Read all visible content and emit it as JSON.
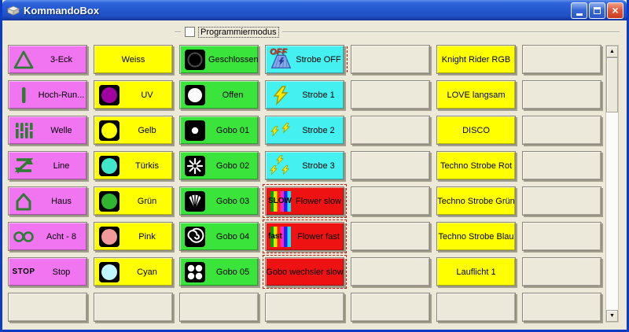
{
  "window": {
    "title": "KommandoBox"
  },
  "toolbar": {
    "checkbox_label": "Programmiermodus",
    "checkbox_checked": false
  },
  "colors": {
    "pink": "#F175F1",
    "yellow": "#FFFF00",
    "green": "#3BE43B",
    "cyan": "#45F0F0",
    "red": "#EE1212",
    "plain": "#ECE9DA",
    "icon_green": "#2E7B32",
    "titlebar_blue": "#2458CE",
    "border_blue": "#0C3BC6"
  },
  "grid": {
    "columns": [
      {
        "id": "figures",
        "bg": "pink",
        "buttons": [
          {
            "label": "3-Eck",
            "icon": "triangle-icon"
          },
          {
            "label": "Hoch-Run...",
            "icon": "vertical-bar-icon"
          },
          {
            "label": "Welle",
            "icon": "wave-bars-icon"
          },
          {
            "label": "Line",
            "icon": "zigzag-icon"
          },
          {
            "label": "Haus",
            "icon": "house-icon"
          },
          {
            "label": "Acht - 8",
            "icon": "infinity-icon"
          },
          {
            "label": "Stop",
            "icon": "stop-text-icon",
            "icon_text": "STOP"
          },
          {
            "bg": "plain"
          }
        ]
      },
      {
        "id": "colors",
        "bg": "yellow",
        "buttons": [
          {
            "label": "Weiss"
          },
          {
            "label": "UV",
            "icon": "color-swatch-icon",
            "swatch": "#A000A0"
          },
          {
            "label": "Gelb",
            "icon": "color-swatch-icon",
            "swatch": "#FFFF00"
          },
          {
            "label": "Türkis",
            "icon": "color-swatch-icon",
            "swatch": "#3FE6C8"
          },
          {
            "label": "Grün",
            "icon": "color-swatch-icon",
            "swatch": "#2FB52F"
          },
          {
            "label": "Pink",
            "icon": "color-swatch-icon",
            "swatch": "#F29A9A"
          },
          {
            "label": "Cyan",
            "icon": "color-swatch-icon",
            "swatch": "#BFF6FF"
          },
          {
            "bg": "plain"
          }
        ]
      },
      {
        "id": "gobos",
        "bg": "green",
        "buttons": [
          {
            "label": "Geschlossen",
            "icon": "shutter-closed-icon"
          },
          {
            "label": "Offen",
            "icon": "shutter-open-icon"
          },
          {
            "label": "Gobo 01",
            "icon": "gobo-dot-icon"
          },
          {
            "label": "Gobo 02",
            "icon": "gobo-star-icon"
          },
          {
            "label": "Gobo 03",
            "icon": "gobo-shell-icon"
          },
          {
            "label": "Gobo 04",
            "icon": "gobo-spiral-icon"
          },
          {
            "label": "Gobo 05",
            "icon": "gobo-circles-icon"
          },
          {
            "bg": "plain"
          }
        ]
      },
      {
        "id": "strobe-flower",
        "bg": "cyan",
        "buttons": [
          {
            "label": "Strobe OFF",
            "icon": "strobe-off-icon",
            "icon_text": "OFF",
            "dash_right": true
          },
          {
            "label": "Strobe 1",
            "icon": "lightning-icon"
          },
          {
            "label": "Strobe 2",
            "icon": "lightning-x2-icon"
          },
          {
            "label": "Strobe 3",
            "icon": "lightning-x3-icon"
          },
          {
            "label": "Flower slow",
            "icon": "rainbow-icon",
            "icon_text": "SLOW",
            "bg": "red",
            "dashed": true
          },
          {
            "label": "Flower fast",
            "icon": "rainbow-icon",
            "icon_text": "fast",
            "bg": "red",
            "dashed": true
          },
          {
            "label": "Gobo wechsler slow",
            "bg": "red",
            "dashed": true
          },
          {
            "bg": "plain"
          }
        ]
      },
      {
        "id": "spare-1",
        "bg": "plain",
        "buttons": [
          {},
          {},
          {},
          {},
          {},
          {},
          {},
          {}
        ]
      },
      {
        "id": "programs",
        "bg": "yellow",
        "buttons": [
          {
            "label": "Knight Rider RGB"
          },
          {
            "label": "LOVE langsam"
          },
          {
            "label": "DISCO"
          },
          {
            "label": "Techno Strobe Rot"
          },
          {
            "label": "Techno Strobe Grün"
          },
          {
            "label": "Techno Strobe Blau"
          },
          {
            "label": "Lauflicht 1"
          },
          {
            "bg": "plain"
          }
        ]
      },
      {
        "id": "spare-2",
        "bg": "plain",
        "buttons": [
          {},
          {},
          {},
          {},
          {},
          {},
          {},
          {}
        ]
      }
    ]
  }
}
